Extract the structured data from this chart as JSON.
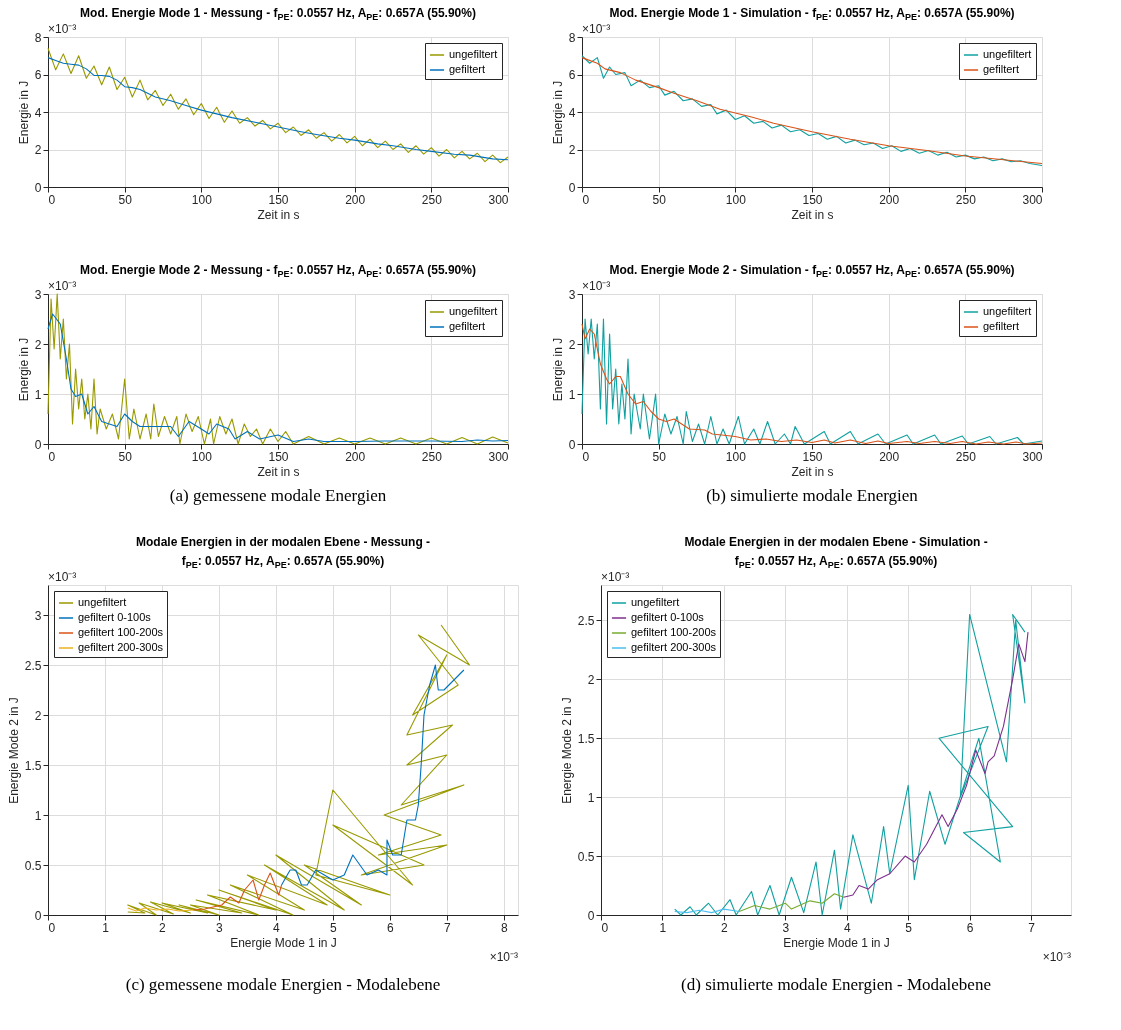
{
  "chart_data": [
    {
      "type": "line",
      "title": "Mod. Energie Mode 1 - Messung - f$_{PE}$: 0.0557 Hz, A$_{PE}$: 0.657A (55.90%)",
      "xlabel": "Zeit in s",
      "ylabel": "Energie in J",
      "xlim": [
        0,
        300
      ],
      "xticks": [
        0,
        50,
        100,
        150,
        200,
        250,
        300
      ],
      "ylim": [
        0,
        8
      ],
      "yticks": [
        0,
        2,
        4,
        6,
        8
      ],
      "grid": true,
      "legend": "top right",
      "annotations": [
        "×10⁻³"
      ],
      "series": [
        {
          "name": "ungefiltert",
          "color": "#999900",
          "x": [
            0,
            5,
            10,
            15,
            20,
            25,
            30,
            35,
            40,
            45,
            50,
            55,
            60,
            65,
            70,
            75,
            80,
            85,
            90,
            95,
            100,
            105,
            110,
            115,
            120,
            125,
            130,
            135,
            140,
            145,
            150,
            155,
            160,
            165,
            170,
            175,
            180,
            185,
            190,
            195,
            200,
            205,
            210,
            215,
            220,
            225,
            230,
            235,
            240,
            245,
            250,
            255,
            260,
            265,
            270,
            275,
            280,
            285,
            290,
            295,
            300
          ],
          "values": [
            7.4,
            6.25,
            7.1,
            6.05,
            7.0,
            5.8,
            6.45,
            5.45,
            6.4,
            5.2,
            5.85,
            4.8,
            5.7,
            4.65,
            5.15,
            4.35,
            4.95,
            4.15,
            4.7,
            3.85,
            4.45,
            3.65,
            4.25,
            3.45,
            4.05,
            3.4,
            3.7,
            3.25,
            3.55,
            3.1,
            3.4,
            2.9,
            3.2,
            2.75,
            3.05,
            2.6,
            2.9,
            2.45,
            2.8,
            2.35,
            2.7,
            2.2,
            2.55,
            2.1,
            2.45,
            2.0,
            2.3,
            1.85,
            2.2,
            1.75,
            2.1,
            1.65,
            2.0,
            1.55,
            1.9,
            1.5,
            1.8,
            1.35,
            1.7,
            1.3,
            1.6
          ]
        },
        {
          "name": "gefiltert",
          "color": "#0072bd",
          "x": [
            0,
            5,
            10,
            15,
            20,
            25,
            30,
            35,
            40,
            45,
            50,
            55,
            60,
            70,
            80,
            90,
            100,
            110,
            120,
            135,
            150,
            165,
            175,
            190,
            200,
            215,
            225,
            240,
            250,
            265,
            275,
            290,
            300
          ],
          "values": [
            6.9,
            6.75,
            6.6,
            6.55,
            6.5,
            6.3,
            5.95,
            5.95,
            5.9,
            5.7,
            5.35,
            5.3,
            5.2,
            4.8,
            4.6,
            4.35,
            4.1,
            3.9,
            3.7,
            3.45,
            3.2,
            2.95,
            2.8,
            2.6,
            2.5,
            2.3,
            2.2,
            2.0,
            1.9,
            1.75,
            1.7,
            1.5,
            1.45
          ]
        }
      ]
    },
    {
      "type": "line",
      "title": "Mod. Energie Mode 2 - Messung - f$_{PE}$: 0.0557 Hz, A$_{PE}$: 0.657A (55.90%)",
      "xlabel": "Zeit in s",
      "ylabel": "Energie in J",
      "xlim": [
        0,
        300
      ],
      "xticks": [
        0,
        50,
        100,
        150,
        200,
        250,
        300
      ],
      "ylim": [
        0,
        3
      ],
      "yticks": [
        0,
        1,
        2,
        3
      ],
      "grid": true,
      "legend": "top right",
      "annotations": [
        "×10⁻³",
        "(a) gemessene modale Energien"
      ],
      "series": [
        {
          "name": "ungefiltert",
          "color": "#999900",
          "x": [
            0,
            2,
            4,
            6,
            8,
            10,
            12,
            14,
            16,
            18,
            20,
            22,
            24,
            26,
            28,
            30,
            32,
            34,
            38,
            42,
            46,
            50,
            53,
            56,
            60,
            64,
            67,
            69,
            72,
            76,
            80,
            84,
            86,
            90,
            94,
            98,
            102,
            106,
            108,
            112,
            116,
            120,
            124,
            128,
            132,
            136,
            140,
            145,
            150,
            155,
            160,
            170,
            180,
            190,
            200,
            210,
            220,
            230,
            240,
            250,
            260,
            270,
            280,
            290,
            300
          ],
          "values": [
            0.6,
            2.9,
            1.9,
            3.0,
            1.7,
            2.5,
            1.3,
            2.0,
            0.4,
            1.5,
            0.7,
            1.3,
            0.5,
            1.0,
            0.3,
            1.3,
            0.2,
            0.7,
            0.3,
            0.6,
            0.1,
            1.3,
            0.1,
            0.7,
            0.1,
            0.6,
            0.1,
            0.8,
            0.15,
            0.55,
            0.2,
            0.55,
            0.0,
            0.6,
            0.25,
            0.55,
            0.0,
            0.5,
            0.0,
            0.55,
            0.2,
            0.5,
            0.0,
            0.4,
            0.15,
            0.3,
            0.0,
            0.3,
            0.05,
            0.25,
            0.0,
            0.15,
            0.0,
            0.12,
            0.0,
            0.12,
            0.0,
            0.12,
            0.0,
            0.12,
            0.0,
            0.13,
            0.0,
            0.14,
            0.02
          ]
        },
        {
          "name": "gefiltert",
          "color": "#0072bd",
          "x": [
            0,
            3,
            8,
            12,
            15,
            18,
            22,
            26,
            30,
            35,
            40,
            45,
            50,
            55,
            60,
            70,
            80,
            85,
            92,
            100,
            105,
            110,
            118,
            122,
            130,
            138,
            150,
            160,
            170,
            180,
            200,
            220,
            250,
            270,
            280,
            290,
            300
          ],
          "values": [
            2.3,
            2.6,
            2.4,
            1.7,
            1.1,
            0.95,
            1.0,
            0.6,
            0.75,
            0.45,
            0.4,
            0.35,
            0.6,
            0.45,
            0.35,
            0.35,
            0.35,
            0.15,
            0.45,
            0.3,
            0.2,
            0.4,
            0.3,
            0.1,
            0.25,
            0.1,
            0.18,
            0.05,
            0.1,
            0.05,
            0.05,
            0.06,
            0.06,
            0.05,
            0.08,
            0.06,
            0.07
          ]
        }
      ]
    },
    {
      "type": "line",
      "title": "Mod. Energie Mode 1 - Simulation - f$_{PE}$: 0.0557 Hz, A$_{PE}$: 0.657A (55.90%)",
      "xlabel": "Zeit in s",
      "ylabel": "Energie in J",
      "xlim": [
        0,
        300
      ],
      "xticks": [
        0,
        50,
        100,
        150,
        200,
        250,
        300
      ],
      "ylim": [
        0,
        8
      ],
      "yticks": [
        0,
        2,
        4,
        6,
        8
      ],
      "grid": true,
      "legend": "top right",
      "annotations": [
        "×10⁻³"
      ],
      "series": [
        {
          "name": "ungefiltert",
          "color": "#11a0a0",
          "x": [
            0,
            5,
            10,
            14,
            18,
            22,
            28,
            32,
            38,
            44,
            50,
            54,
            60,
            66,
            72,
            78,
            84,
            88,
            94,
            100,
            106,
            112,
            118,
            124,
            130,
            136,
            142,
            148,
            154,
            160,
            166,
            172,
            178,
            184,
            190,
            196,
            202,
            208,
            214,
            220,
            226,
            232,
            238,
            244,
            250,
            256,
            262,
            268,
            274,
            280,
            286,
            292,
            300
          ],
          "values": [
            7.0,
            6.6,
            6.9,
            5.8,
            6.4,
            6.0,
            6.1,
            5.4,
            5.7,
            5.3,
            5.4,
            4.9,
            5.1,
            4.6,
            4.7,
            4.3,
            4.4,
            3.9,
            4.1,
            3.6,
            3.8,
            3.4,
            3.5,
            3.15,
            3.3,
            2.95,
            3.05,
            2.75,
            2.85,
            2.55,
            2.7,
            2.35,
            2.5,
            2.25,
            2.35,
            2.05,
            2.2,
            1.9,
            2.05,
            1.8,
            1.95,
            1.7,
            1.85,
            1.6,
            1.7,
            1.5,
            1.6,
            1.4,
            1.5,
            1.35,
            1.4,
            1.25,
            1.15
          ]
        },
        {
          "name": "gefiltert",
          "color": "#d95319",
          "x": [
            0,
            10,
            15,
            25,
            35,
            50,
            60,
            75,
            90,
            100,
            110,
            125,
            150,
            175,
            200,
            225,
            250,
            275,
            300
          ],
          "values": [
            6.9,
            6.6,
            6.3,
            6.1,
            5.7,
            5.3,
            5.0,
            4.6,
            4.15,
            3.95,
            3.75,
            3.4,
            2.95,
            2.55,
            2.2,
            1.95,
            1.65,
            1.45,
            1.25
          ]
        }
      ]
    },
    {
      "type": "line",
      "title": "Mod. Energie Mode 2 - Simulation - f$_{PE}$: 0.0557 Hz, A$_{PE}$: 0.657A (55.90%)",
      "xlabel": "Zeit in s",
      "ylabel": "Energie in J",
      "xlim": [
        0,
        300
      ],
      "xticks": [
        0,
        50,
        100,
        150,
        200,
        250,
        300
      ],
      "ylim": [
        0,
        3
      ],
      "yticks": [
        0,
        1,
        2,
        3
      ],
      "grid": true,
      "legend": "top right",
      "annotations": [
        "×10⁻³",
        "(b) simulierte modale Energien"
      ],
      "series": [
        {
          "name": "ungefiltert",
          "color": "#11a0a0",
          "x": [
            0,
            2,
            4,
            6,
            8,
            10,
            12,
            14,
            16,
            18,
            20,
            22,
            24,
            26,
            28,
            30,
            32,
            34,
            38,
            40,
            44,
            48,
            50,
            54,
            58,
            62,
            66,
            68,
            72,
            76,
            80,
            84,
            88,
            92,
            96,
            102,
            106,
            112,
            116,
            121,
            126,
            132,
            136,
            139,
            145,
            158,
            162,
            175,
            180,
            193,
            198,
            212,
            216,
            230,
            234,
            248,
            252,
            266,
            270,
            284,
            288,
            300
          ],
          "values": [
            0.6,
            2.5,
            1.8,
            2.5,
            1.7,
            2.4,
            0.7,
            2.5,
            0.4,
            2.2,
            0.7,
            1.5,
            0.4,
            1.2,
            0.5,
            1.7,
            0.2,
            1.0,
            0.3,
            1.0,
            0.1,
            1.0,
            0.0,
            0.6,
            0.2,
            0.55,
            0.0,
            0.65,
            0.05,
            0.4,
            0.0,
            0.55,
            0.0,
            0.3,
            0.0,
            0.55,
            0.0,
            0.3,
            0.0,
            0.45,
            0.0,
            0.2,
            0.0,
            0.35,
            0.0,
            0.25,
            0.0,
            0.25,
            0.0,
            0.2,
            0.0,
            0.18,
            0.0,
            0.18,
            0.0,
            0.16,
            0.0,
            0.15,
            0.0,
            0.13,
            0.0,
            0.06
          ]
        },
        {
          "name": "gefiltert",
          "color": "#d95319",
          "x": [
            0,
            2,
            5,
            8,
            12,
            16,
            18,
            22,
            25,
            30,
            35,
            40,
            45,
            50,
            55,
            60,
            65,
            70,
            80,
            85,
            100,
            110,
            120,
            130,
            140,
            150,
            158,
            165,
            175,
            185,
            193,
            200,
            212,
            220,
            230,
            240,
            248,
            257,
            265,
            275,
            283,
            290,
            300
          ],
          "values": [
            2.4,
            2.1,
            2.3,
            2.2,
            1.6,
            1.3,
            1.2,
            1.35,
            1.35,
            1.0,
            0.8,
            0.85,
            0.65,
            0.5,
            0.45,
            0.5,
            0.4,
            0.3,
            0.28,
            0.2,
            0.15,
            0.08,
            0.1,
            0.05,
            0.08,
            0.03,
            0.08,
            0.02,
            0.08,
            0.01,
            0.06,
            0.01,
            0.05,
            0.01,
            0.05,
            0.01,
            0.05,
            0.0,
            0.04,
            0.0,
            0.04,
            0.0,
            0.02
          ]
        }
      ]
    },
    {
      "type": "line",
      "title": "Modale Energien in der modalen Ebene - Messung - f$_{PE}$: 0.0557 Hz, A$_{PE}$: 0.657A (55.90%)",
      "xlabel": "Energie Mode 1 in J",
      "ylabel": "Energie Mode 2 in J",
      "xlim": [
        0,
        8.25
      ],
      "xticks": [
        0,
        1,
        2,
        3,
        4,
        5,
        6,
        7,
        8
      ],
      "ylim": [
        0,
        3.3
      ],
      "yticks": [
        0,
        0.5,
        1,
        1.5,
        2,
        2.5,
        3
      ],
      "grid": true,
      "legend": "top left",
      "annotations": [
        "×10⁻³",
        "×10⁻³",
        "(c) gemessene modale Energien - Modalebene"
      ],
      "series": [
        {
          "name": "ungefiltert",
          "color": "#999900",
          "x": [
            6.9,
            7.4,
            6.5,
            7.2,
            6.4,
            7.0,
            6.3,
            7.1,
            6.3,
            7.0,
            6.2,
            7.3,
            5.9,
            6.9,
            5.8,
            7.0,
            5.5,
            6.6,
            5.0,
            6.4,
            5.0,
            4.7,
            6.0,
            4.5,
            5.5,
            4.0,
            5.2,
            3.8,
            4.9,
            3.5,
            4.5,
            3.2,
            4.3,
            3.0,
            4.0,
            2.8,
            3.7,
            2.6,
            3.4,
            2.5,
            3.0,
            2.3,
            2.8,
            2.0,
            2.5,
            1.8,
            2.2,
            1.6,
            1.9,
            1.4,
            1.7,
            1.4
          ],
          "values": [
            2.9,
            2.5,
            2.8,
            2.3,
            2.0,
            2.6,
            1.8,
            1.9,
            1.5,
            1.6,
            1.1,
            1.3,
            1.0,
            0.8,
            0.6,
            0.7,
            0.4,
            0.5,
            0.9,
            0.3,
            1.25,
            0.4,
            0.2,
            0.5,
            0.1,
            0.6,
            0.05,
            0.5,
            0.1,
            0.4,
            0.05,
            0.3,
            0.0,
            0.25,
            0.05,
            0.2,
            0.0,
            0.15,
            0.02,
            0.1,
            0.0,
            0.1,
            0.02,
            0.12,
            0.02,
            0.13,
            0.01,
            0.12,
            0.0,
            0.1,
            0.02,
            0.03
          ]
        },
        {
          "name": "gefiltert 0-100s",
          "color": "#0072bd",
          "x": [
            7.3,
            6.95,
            6.85,
            6.8,
            6.7,
            6.6,
            6.55,
            6.5,
            6.45,
            6.3,
            6.2,
            6.05,
            5.95,
            5.95,
            5.8,
            5.6,
            5.35,
            5.2,
            5.0,
            4.85,
            4.7,
            4.55,
            4.45,
            4.35,
            4.25,
            4.15,
            4.1
          ],
          "values": [
            2.45,
            2.25,
            2.25,
            2.5,
            2.3,
            2.0,
            1.5,
            1.1,
            0.95,
            0.95,
            0.6,
            0.6,
            0.75,
            0.4,
            0.45,
            0.4,
            0.6,
            0.4,
            0.35,
            0.4,
            0.45,
            0.3,
            0.3,
            0.45,
            0.45,
            0.35,
            0.3
          ]
        },
        {
          "name": "gefiltert 100-200s",
          "color": "#d95319",
          "x": [
            4.1,
            4.05,
            3.9,
            3.8,
            3.7,
            3.6,
            3.45,
            3.35,
            3.2,
            3.05,
            2.9,
            2.75,
            2.55
          ],
          "values": [
            0.3,
            0.2,
            0.42,
            0.3,
            0.15,
            0.35,
            0.25,
            0.12,
            0.18,
            0.1,
            0.08,
            0.06,
            0.05
          ]
        },
        {
          "name": "gefiltert 200-300s",
          "color": "#edb120",
          "x": [
            2.55,
            2.3,
            2.1,
            1.9,
            1.7,
            1.55,
            1.4
          ],
          "values": [
            0.05,
            0.04,
            0.06,
            0.05,
            0.07,
            0.04,
            0.07
          ]
        }
      ]
    },
    {
      "type": "line",
      "title": "Modale Energien in der modalen Ebene - Simulation - f$_{PE}$: 0.0557 Hz, A$_{PE}$: 0.657A (55.90%)",
      "xlabel": "Energie Mode 1 in J",
      "ylabel": "Energie Mode 2 in J",
      "xlim": [
        0,
        7.65
      ],
      "xticks": [
        0,
        1,
        2,
        3,
        4,
        5,
        6,
        7
      ],
      "ylim": [
        0,
        2.8
      ],
      "yticks": [
        0,
        0.5,
        1,
        1.5,
        2,
        2.5
      ],
      "grid": true,
      "legend": "top left",
      "annotations": [
        "×10⁻³",
        "×10⁻³",
        "(d) simulierte modale Energien - Modalebene"
      ],
      "series": [
        {
          "name": "ungefiltert",
          "color": "#11a0a0",
          "x": [
            6.9,
            6.7,
            6.9,
            6.75,
            6.6,
            6.0,
            5.85,
            6.3,
            5.5,
            6.7,
            5.9,
            6.5,
            6.15,
            5.6,
            5.35,
            5.1,
            5.0,
            4.7,
            4.6,
            4.4,
            4.1,
            3.9,
            3.8,
            3.6,
            3.5,
            3.3,
            3.1,
            2.9,
            2.75,
            2.55,
            2.45,
            2.2,
            2.1,
            1.9,
            1.75,
            1.55,
            1.45,
            1.3,
            1.2
          ],
          "values": [
            2.4,
            2.55,
            1.8,
            2.5,
            1.3,
            2.55,
            1.0,
            1.6,
            1.5,
            0.75,
            0.7,
            0.45,
            1.5,
            0.6,
            1.05,
            0.3,
            1.1,
            0.35,
            0.75,
            0.1,
            0.68,
            0.05,
            0.55,
            0.0,
            0.45,
            0.02,
            0.32,
            0.0,
            0.25,
            0.0,
            0.2,
            0.0,
            0.13,
            0.0,
            0.1,
            0.0,
            0.07,
            0.0,
            0.05
          ]
        },
        {
          "name": "gefiltert 0-100s",
          "color": "#7e2f8e",
          "x": [
            6.95,
            6.9,
            6.8,
            6.7,
            6.55,
            6.4,
            6.3,
            6.25,
            6.1,
            5.95,
            5.8,
            5.65,
            5.55,
            5.3,
            5.1,
            4.95,
            4.7,
            4.5,
            4.35,
            4.2,
            4.1,
            3.95
          ],
          "values": [
            2.4,
            2.15,
            2.3,
            2.0,
            1.6,
            1.35,
            1.3,
            1.2,
            1.4,
            1.1,
            0.9,
            0.75,
            0.85,
            0.6,
            0.45,
            0.5,
            0.35,
            0.3,
            0.22,
            0.25,
            0.17,
            0.15
          ]
        },
        {
          "name": "gefiltert 100-200s",
          "color": "#77ac30",
          "x": [
            3.95,
            3.8,
            3.6,
            3.4,
            3.1,
            3.0,
            2.75,
            2.5,
            2.25
          ],
          "values": [
            0.15,
            0.18,
            0.1,
            0.12,
            0.05,
            0.1,
            0.05,
            0.08,
            0.03
          ]
        },
        {
          "name": "gefiltert 200-300s",
          "color": "#4dbeee",
          "x": [
            2.25,
            2.0,
            1.8,
            1.6,
            1.4,
            1.2
          ],
          "values": [
            0.03,
            0.05,
            0.02,
            0.04,
            0.02,
            0.03
          ]
        }
      ]
    }
  ]
}
